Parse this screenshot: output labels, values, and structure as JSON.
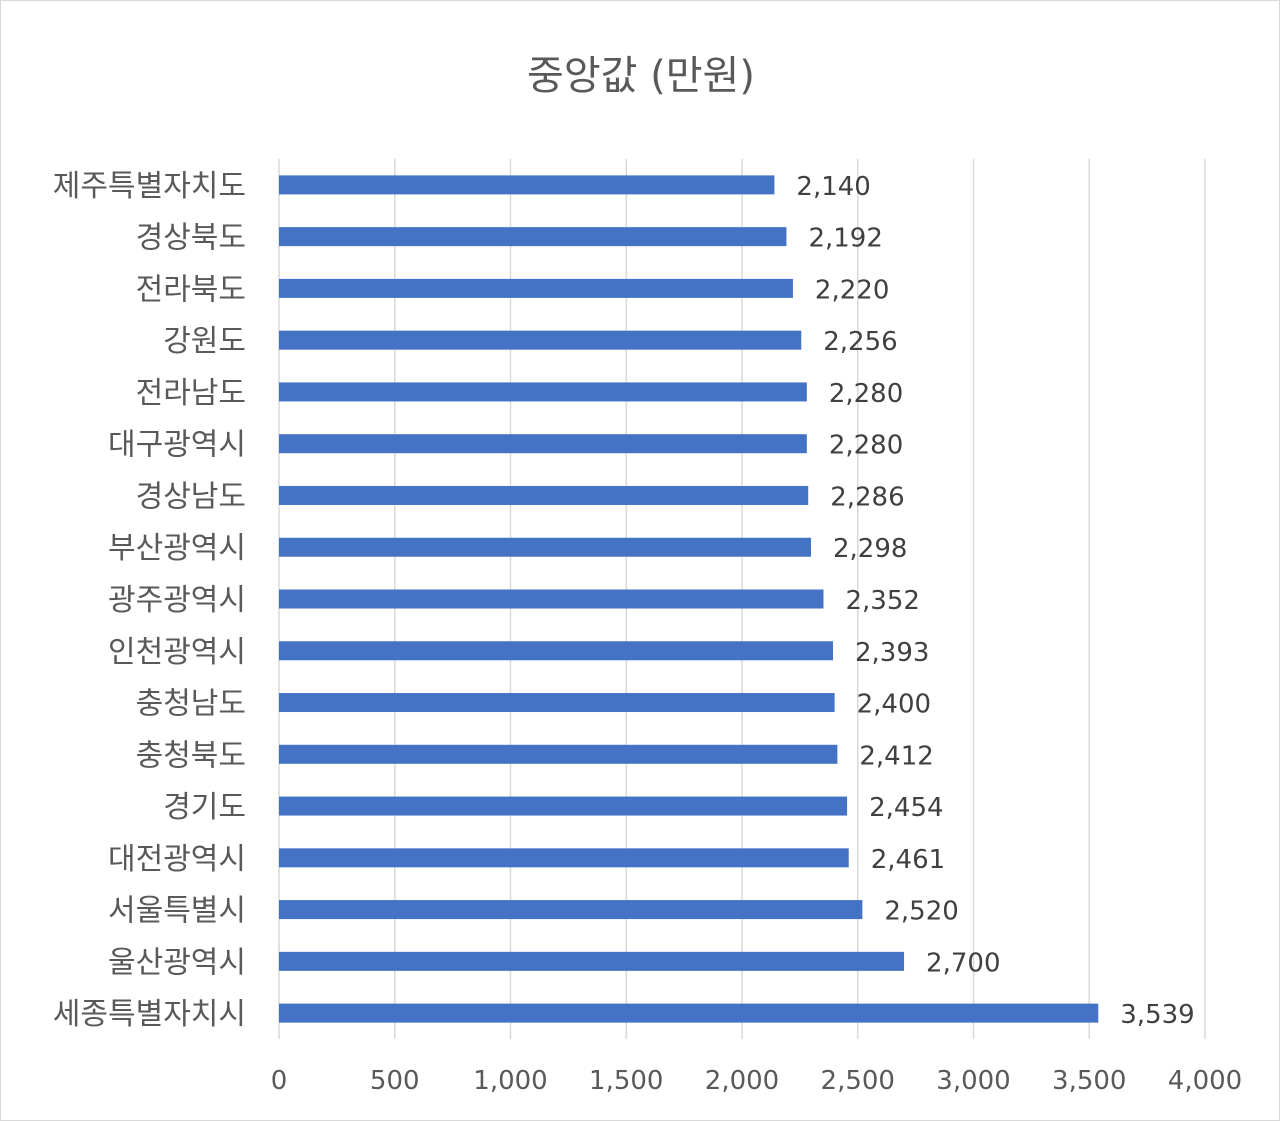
{
  "chart_data": {
    "type": "bar",
    "orientation": "horizontal",
    "title": "중앙값 (만원)",
    "categories": [
      "제주특별자치도",
      "경상북도",
      "전라북도",
      "강원도",
      "전라남도",
      "대구광역시",
      "경상남도",
      "부산광역시",
      "광주광역시",
      "인천광역시",
      "충청남도",
      "충청북도",
      "경기도",
      "대전광역시",
      "서울특별시",
      "울산광역시",
      "세종특별자치시"
    ],
    "values": [
      2140,
      2192,
      2220,
      2256,
      2280,
      2280,
      2286,
      2298,
      2352,
      2393,
      2400,
      2412,
      2454,
      2461,
      2520,
      2700,
      3539
    ],
    "value_labels": [
      "2,140",
      "2,192",
      "2,220",
      "2,256",
      "2,280",
      "2,280",
      "2,286",
      "2,298",
      "2,352",
      "2,393",
      "2,400",
      "2,412",
      "2,454",
      "2,461",
      "2,520",
      "2,700",
      "3,539"
    ],
    "xlim": [
      0,
      4000
    ],
    "x_ticks": [
      0,
      500,
      1000,
      1500,
      2000,
      2500,
      3000,
      3500,
      4000
    ],
    "x_tick_labels": [
      "0",
      "500",
      "1,000",
      "1,500",
      "2,000",
      "2,500",
      "3,000",
      "3,500",
      "4,000"
    ],
    "xlabel": "",
    "ylabel": "",
    "grid": "vertical",
    "legend": "none",
    "bar_color": "#4472C4",
    "grid_color": "#d9d9d9"
  }
}
